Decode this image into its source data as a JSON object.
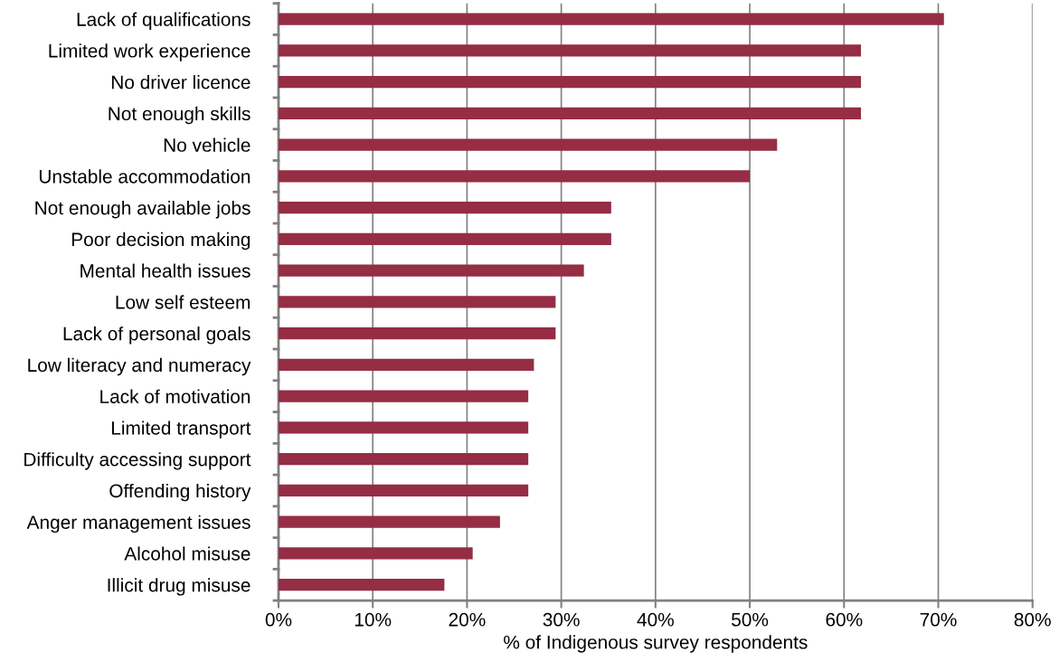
{
  "chart_data": {
    "type": "bar",
    "orientation": "horizontal",
    "categories": [
      "Lack of qualifications",
      "Limited work experience",
      "No driver licence",
      "Not enough skills",
      "No vehicle",
      "Unstable accommodation",
      "Not enough available jobs",
      "Poor decision making",
      "Mental health issues",
      "Low self esteem",
      "Lack of personal goals",
      "Low literacy and numeracy",
      "Lack of motivation",
      "Limited transport",
      "Difficulty accessing support",
      "Offending history",
      "Anger management issues",
      "Alcohol misuse",
      "Illicit drug misuse"
    ],
    "values": [
      70.6,
      61.8,
      61.8,
      61.8,
      52.9,
      50.0,
      35.3,
      35.3,
      32.4,
      29.4,
      29.4,
      27.1,
      26.5,
      26.5,
      26.5,
      26.5,
      23.5,
      20.6,
      17.6
    ],
    "color": "#952d45",
    "xlabel": "% of Indigenous survey respondents",
    "xlim": [
      0,
      80
    ],
    "xticks": [
      {
        "value": 0,
        "label": "0%"
      },
      {
        "value": 10,
        "label": "10%"
      },
      {
        "value": 20,
        "label": "20%"
      },
      {
        "value": 30,
        "label": "30%"
      },
      {
        "value": 40,
        "label": "40%"
      },
      {
        "value": 50,
        "label": "50%"
      },
      {
        "value": 60,
        "label": "60%"
      },
      {
        "value": 70,
        "label": "70%"
      },
      {
        "value": 80,
        "label": "80%"
      }
    ],
    "grid": "x",
    "legend": false
  }
}
